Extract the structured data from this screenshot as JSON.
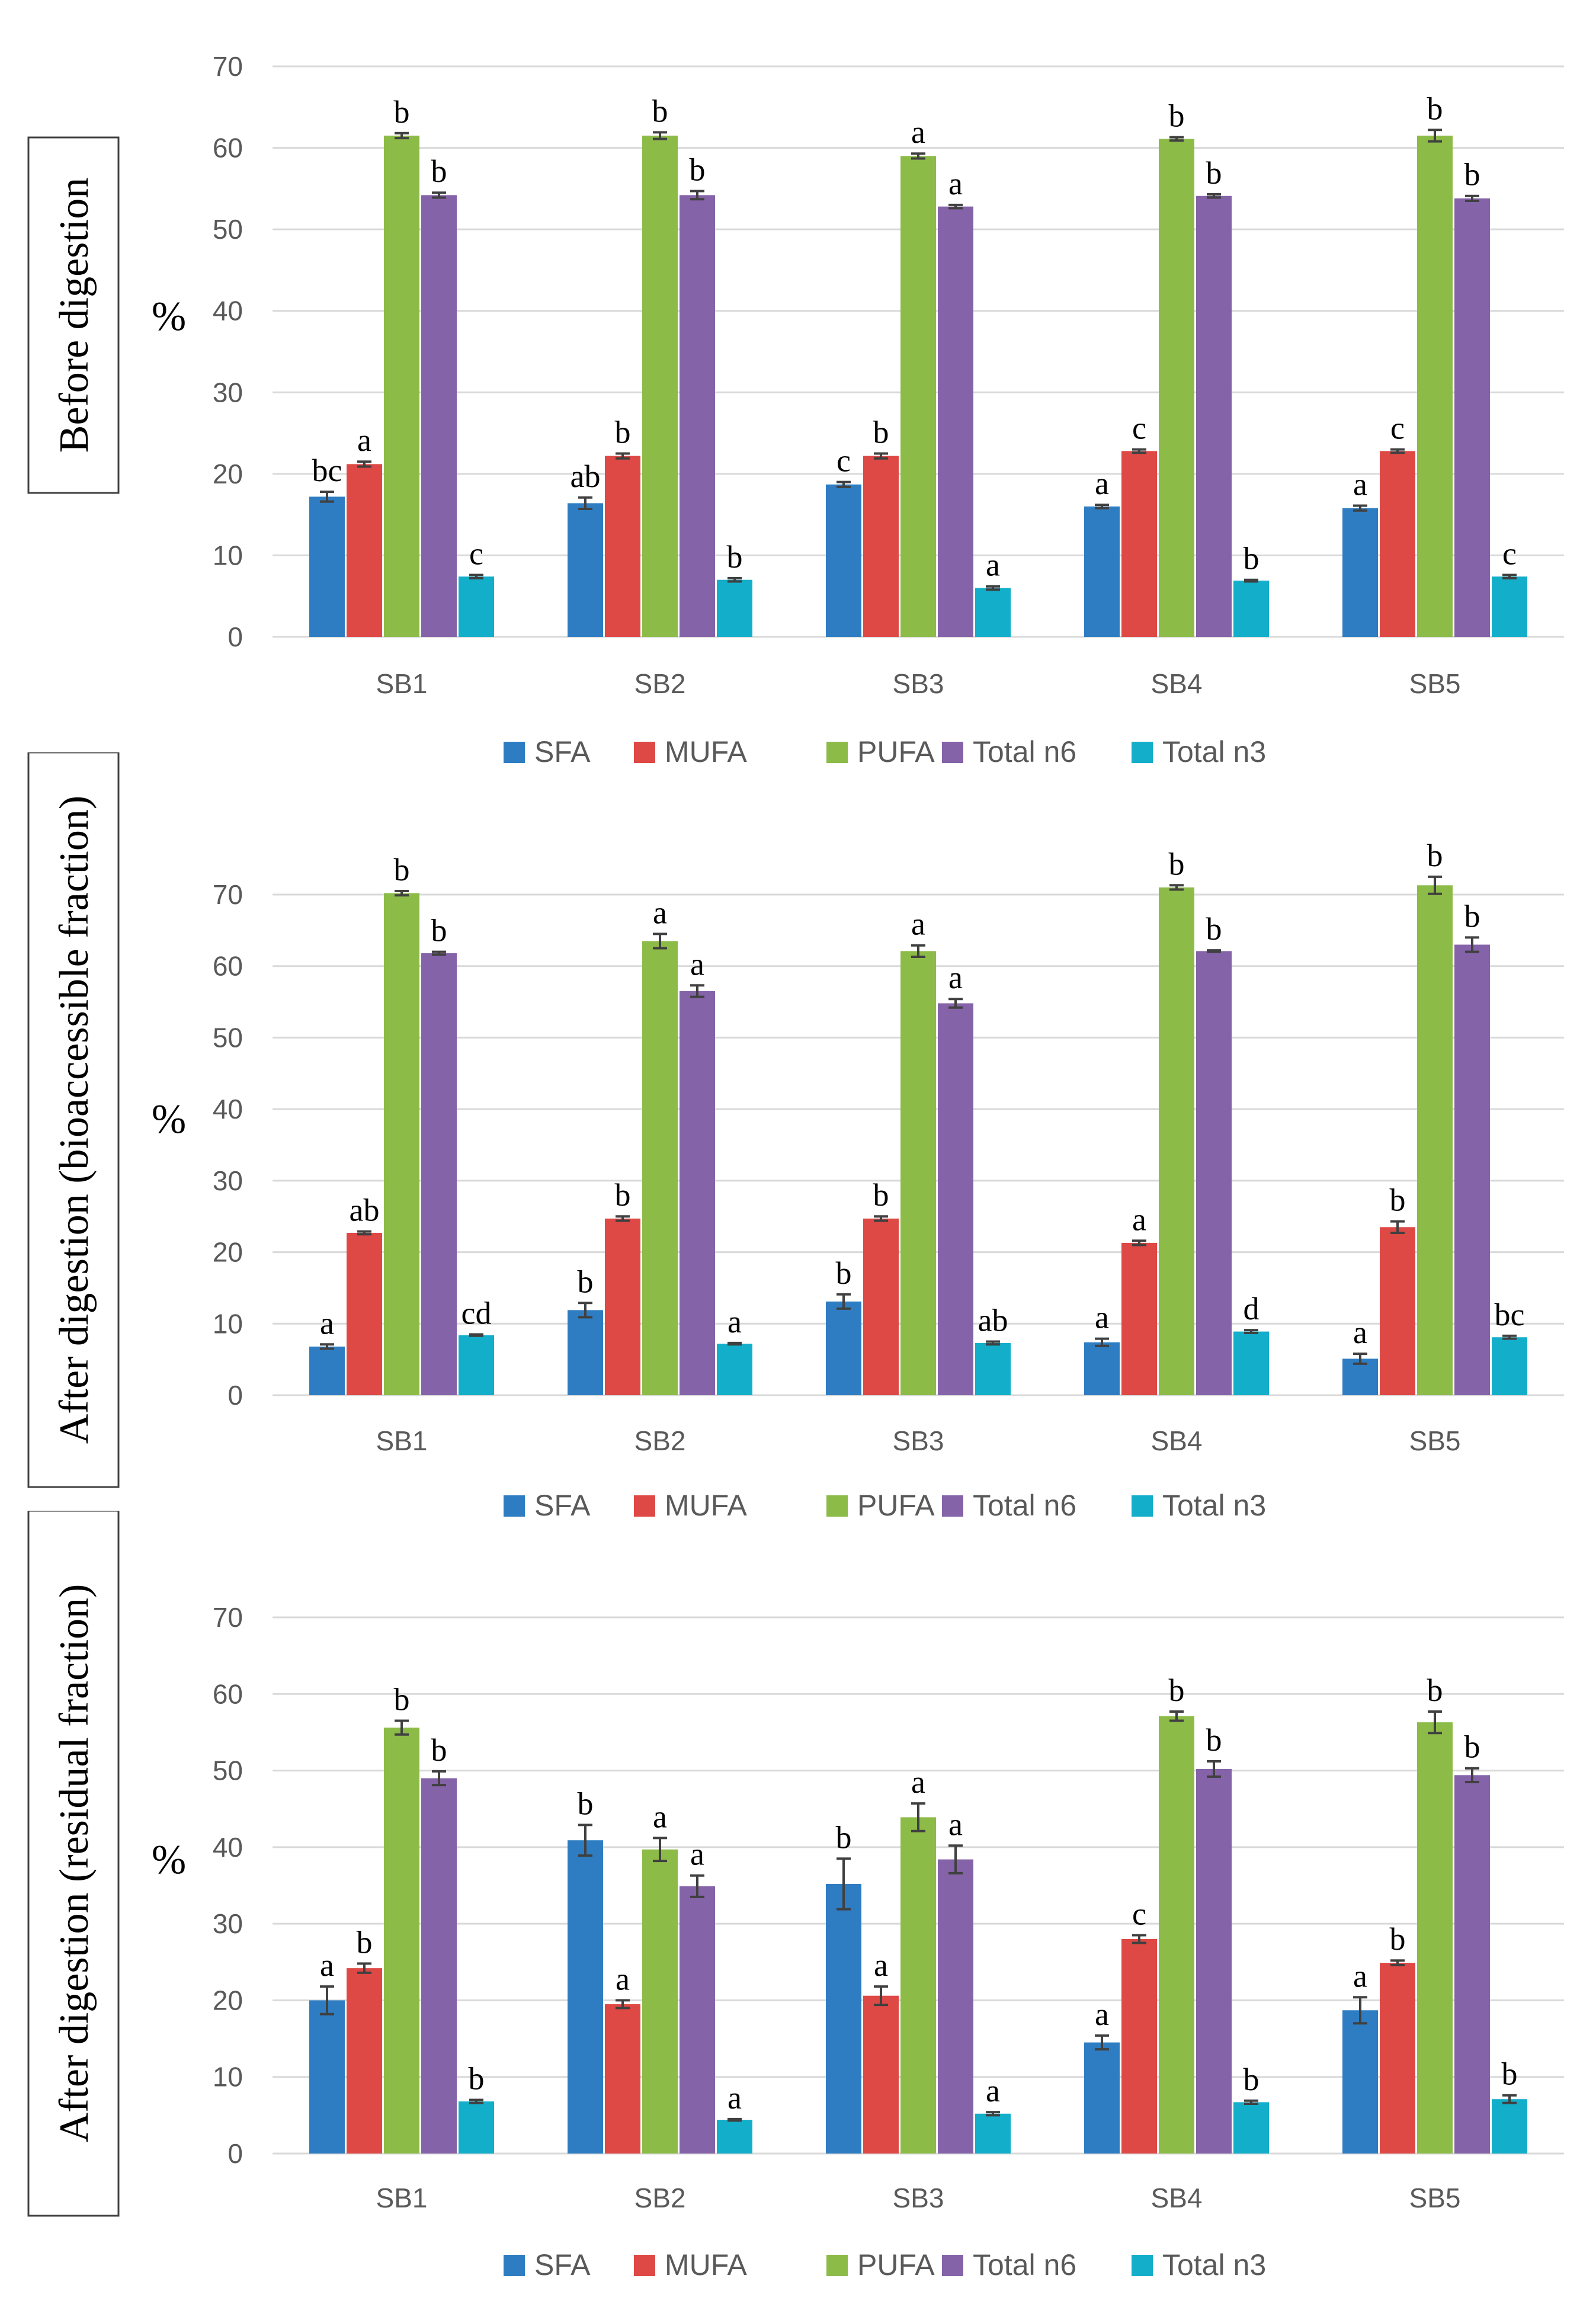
{
  "colors": {
    "SFA": "#2E7DC2",
    "MUFA": "#DE4845",
    "PUFA": "#8CBB48",
    "Total n6": "#8563A8",
    "Total n3": "#13AECA"
  },
  "chart_data": [
    {
      "type": "bar",
      "title": "Before digestion",
      "side_label": "Before digestion",
      "ylabel": "%",
      "ylim": [
        0,
        70
      ],
      "yticks": [
        0,
        10,
        20,
        30,
        40,
        50,
        60,
        70
      ],
      "categories": [
        "SB1",
        "SB2",
        "SB3",
        "SB4",
        "SB5"
      ],
      "legend": [
        "SFA",
        "MUFA",
        "PUFA",
        "Total n6",
        "Total n3"
      ],
      "series": [
        {
          "name": "SFA",
          "values": [
            17.2,
            16.4,
            18.7,
            16.0,
            15.8
          ],
          "errors": [
            0.6,
            0.7,
            0.3,
            0.2,
            0.3
          ],
          "letters": [
            "bc",
            "ab",
            "c",
            "a",
            "a"
          ]
        },
        {
          "name": "MUFA",
          "values": [
            21.2,
            22.2,
            22.2,
            22.8,
            22.8
          ],
          "errors": [
            0.3,
            0.3,
            0.3,
            0.2,
            0.2
          ],
          "letters": [
            "a",
            "b",
            "b",
            "c",
            "c"
          ]
        },
        {
          "name": "PUFA",
          "values": [
            61.5,
            61.5,
            59.0,
            61.1,
            61.5
          ],
          "errors": [
            0.3,
            0.4,
            0.3,
            0.2,
            0.7
          ],
          "letters": [
            "b",
            "b",
            "a",
            "b",
            "b"
          ]
        },
        {
          "name": "Total n6",
          "values": [
            54.2,
            54.2,
            52.8,
            54.1,
            53.8
          ],
          "errors": [
            0.3,
            0.5,
            0.2,
            0.2,
            0.3
          ],
          "letters": [
            "b",
            "b",
            "a",
            "b",
            "b"
          ]
        },
        {
          "name": "Total n3",
          "values": [
            7.4,
            7.0,
            6.0,
            6.9,
            7.4
          ],
          "errors": [
            0.2,
            0.2,
            0.2,
            0.1,
            0.2
          ],
          "letters": [
            "c",
            "b",
            "a",
            "b",
            "c"
          ]
        }
      ]
    },
    {
      "type": "bar",
      "title": "After digestion (bioaccessible fraction)",
      "side_label": "After digestion  (bioaccessible fraction)",
      "ylabel": "%",
      "ylim": [
        0,
        70
      ],
      "yticks": [
        0,
        10,
        20,
        30,
        40,
        50,
        60,
        70
      ],
      "categories": [
        "SB1",
        "SB2",
        "SB3",
        "SB4",
        "SB5"
      ],
      "legend": [
        "SFA",
        "MUFA",
        "PUFA",
        "Total n6",
        "Total n3"
      ],
      "series": [
        {
          "name": "SFA",
          "values": [
            6.8,
            11.9,
            13.1,
            7.4,
            5.1
          ],
          "errors": [
            0.3,
            1.0,
            1.0,
            0.5,
            0.7
          ],
          "letters": [
            "a",
            "b",
            "b",
            "a",
            "a"
          ]
        },
        {
          "name": "MUFA",
          "values": [
            22.7,
            24.7,
            24.7,
            21.3,
            23.5
          ],
          "errors": [
            0.2,
            0.3,
            0.3,
            0.3,
            0.8
          ],
          "letters": [
            "ab",
            "b",
            "b",
            "a",
            "b"
          ]
        },
        {
          "name": "PUFA",
          "values": [
            70.2,
            63.5,
            62.1,
            71.0,
            71.3
          ],
          "errors": [
            0.3,
            1.0,
            0.8,
            0.3,
            1.2
          ],
          "letters": [
            "b",
            "a",
            "a",
            "b",
            "b"
          ]
        },
        {
          "name": "Total n6",
          "values": [
            61.8,
            56.5,
            54.8,
            62.1,
            63.0
          ],
          "errors": [
            0.2,
            0.8,
            0.6,
            0.1,
            1.0
          ],
          "letters": [
            "b",
            "a",
            "a",
            "b",
            "b"
          ]
        },
        {
          "name": "Total n3",
          "values": [
            8.4,
            7.2,
            7.3,
            8.9,
            8.1
          ],
          "errors": [
            0.1,
            0.1,
            0.2,
            0.2,
            0.2
          ],
          "letters": [
            "cd",
            "a",
            "ab",
            "d",
            "bc"
          ]
        }
      ]
    },
    {
      "type": "bar",
      "title": "After digestion (residual fraction)",
      "side_label": "After digestion  (residual fraction)",
      "ylabel": "%",
      "ylim": [
        0,
        70
      ],
      "yticks": [
        0,
        10,
        20,
        30,
        40,
        50,
        60,
        70
      ],
      "categories": [
        "SB1",
        "SB2",
        "SB3",
        "SB4",
        "SB5"
      ],
      "legend": [
        "SFA",
        "MUFA",
        "PUFA",
        "Total n6",
        "Total n3"
      ],
      "series": [
        {
          "name": "SFA",
          "values": [
            20.0,
            40.9,
            35.2,
            14.5,
            18.7
          ],
          "errors": [
            1.8,
            2.0,
            3.3,
            0.9,
            1.7
          ],
          "letters": [
            "a",
            "b",
            "b",
            "a",
            "a"
          ]
        },
        {
          "name": "MUFA",
          "values": [
            24.2,
            19.5,
            20.6,
            28.0,
            24.9
          ],
          "errors": [
            0.6,
            0.5,
            1.2,
            0.5,
            0.3
          ],
          "letters": [
            "b",
            "a",
            "a",
            "c",
            "b"
          ]
        },
        {
          "name": "PUFA",
          "values": [
            55.6,
            39.7,
            43.9,
            57.1,
            56.3
          ],
          "errors": [
            0.9,
            1.5,
            1.8,
            0.6,
            1.4
          ],
          "letters": [
            "b",
            "a",
            "a",
            "b",
            "b"
          ]
        },
        {
          "name": "Total n6",
          "values": [
            49.0,
            34.9,
            38.4,
            50.2,
            49.4
          ],
          "errors": [
            0.9,
            1.4,
            1.8,
            1.0,
            0.9
          ],
          "letters": [
            "b",
            "a",
            "a",
            "b",
            "b"
          ]
        },
        {
          "name": "Total n3",
          "values": [
            6.8,
            4.4,
            5.2,
            6.7,
            7.1
          ],
          "errors": [
            0.2,
            0.1,
            0.2,
            0.2,
            0.5
          ],
          "letters": [
            "b",
            "a",
            "a",
            "b",
            "b"
          ]
        }
      ]
    }
  ]
}
